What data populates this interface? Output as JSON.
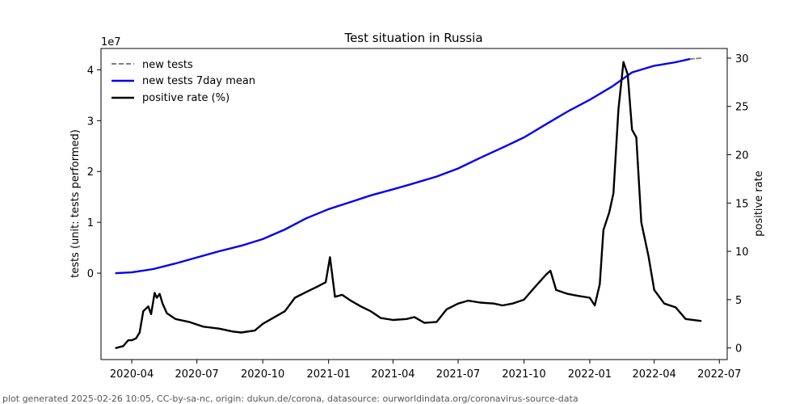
{
  "chart_data": {
    "type": "line",
    "title": "Test situation in Russia",
    "ylabel_left": "tests (unit: tests performed)",
    "ylabel_right": "positive rate",
    "left_multiplier": "1e7",
    "left_ylim": [
      -17000000,
      44200000
    ],
    "right_ylim": [
      -1.2,
      31.0
    ],
    "xlim": [
      "2020-02-18",
      "2022-07-12"
    ],
    "left_ticks": [
      {
        "value": 0,
        "label": "0"
      },
      {
        "value": 10000000,
        "label": "1"
      },
      {
        "value": 20000000,
        "label": "2"
      },
      {
        "value": 30000000,
        "label": "3"
      },
      {
        "value": 40000000,
        "label": "4"
      }
    ],
    "right_ticks": [
      {
        "value": 0,
        "label": "0"
      },
      {
        "value": 5,
        "label": "5"
      },
      {
        "value": 10,
        "label": "10"
      },
      {
        "value": 15,
        "label": "15"
      },
      {
        "value": 20,
        "label": "20"
      },
      {
        "value": 25,
        "label": "25"
      },
      {
        "value": 30,
        "label": "30"
      }
    ],
    "x_ticks": [
      {
        "date": "2020-04-01",
        "label": "2020-04"
      },
      {
        "date": "2020-07-01",
        "label": "2020-07"
      },
      {
        "date": "2020-10-01",
        "label": "2020-10"
      },
      {
        "date": "2021-01-01",
        "label": "2021-01"
      },
      {
        "date": "2021-04-01",
        "label": "2021-04"
      },
      {
        "date": "2021-07-01",
        "label": "2021-07"
      },
      {
        "date": "2021-10-01",
        "label": "2021-10"
      },
      {
        "date": "2022-01-01",
        "label": "2022-01"
      },
      {
        "date": "2022-04-01",
        "label": "2022-04"
      },
      {
        "date": "2022-07-01",
        "label": "2022-07"
      }
    ],
    "legend": {
      "placement": "top-left",
      "entries": [
        {
          "label": "new tests",
          "color": "#808080",
          "style": "dashed"
        },
        {
          "label": "new tests 7day mean",
          "color": "#0000ee",
          "style": "solid"
        },
        {
          "label": "positive rate (%)",
          "color": "#000000",
          "style": "solid"
        }
      ]
    },
    "series": [
      {
        "name": "new tests",
        "axis": "left",
        "color": "#808080",
        "style": "dashed",
        "points": [
          [
            "2022-05-20",
            42100000
          ],
          [
            "2022-06-05",
            42300000
          ]
        ]
      },
      {
        "name": "new tests 7day mean",
        "axis": "left",
        "color": "#0000ee",
        "style": "solid",
        "points": [
          [
            "2020-03-10",
            0
          ],
          [
            "2020-04-01",
            150000
          ],
          [
            "2020-05-01",
            800000
          ],
          [
            "2020-06-01",
            1900000
          ],
          [
            "2020-07-01",
            3100000
          ],
          [
            "2020-08-01",
            4300000
          ],
          [
            "2020-09-01",
            5400000
          ],
          [
            "2020-10-01",
            6700000
          ],
          [
            "2020-11-01",
            8600000
          ],
          [
            "2020-12-01",
            10800000
          ],
          [
            "2021-01-01",
            12600000
          ],
          [
            "2021-02-01",
            14000000
          ],
          [
            "2021-03-01",
            15300000
          ],
          [
            "2021-04-01",
            16500000
          ],
          [
            "2021-05-01",
            17700000
          ],
          [
            "2021-06-01",
            19000000
          ],
          [
            "2021-07-01",
            20600000
          ],
          [
            "2021-08-01",
            22700000
          ],
          [
            "2021-09-01",
            24700000
          ],
          [
            "2021-10-01",
            26700000
          ],
          [
            "2021-11-01",
            29300000
          ],
          [
            "2021-12-01",
            31800000
          ],
          [
            "2022-01-01",
            34100000
          ],
          [
            "2022-02-01",
            36700000
          ],
          [
            "2022-03-01",
            39500000
          ],
          [
            "2022-04-01",
            40800000
          ],
          [
            "2022-05-01",
            41500000
          ],
          [
            "2022-05-20",
            42100000
          ]
        ]
      },
      {
        "name": "positive rate (%)",
        "axis": "right",
        "color": "#000000",
        "style": "solid",
        "points": [
          [
            "2020-03-10",
            0
          ],
          [
            "2020-03-20",
            0.2
          ],
          [
            "2020-03-27",
            0.8
          ],
          [
            "2020-04-01",
            0.8
          ],
          [
            "2020-04-07",
            1.0
          ],
          [
            "2020-04-12",
            1.6
          ],
          [
            "2020-04-17",
            3.8
          ],
          [
            "2020-04-24",
            4.3
          ],
          [
            "2020-04-28",
            3.5
          ],
          [
            "2020-05-03",
            5.7
          ],
          [
            "2020-05-06",
            5.2
          ],
          [
            "2020-05-10",
            5.6
          ],
          [
            "2020-05-14",
            4.6
          ],
          [
            "2020-05-20",
            3.6
          ],
          [
            "2020-06-01",
            3.0
          ],
          [
            "2020-06-20",
            2.7
          ],
          [
            "2020-07-10",
            2.2
          ],
          [
            "2020-08-01",
            2.0
          ],
          [
            "2020-08-20",
            1.7
          ],
          [
            "2020-09-01",
            1.6
          ],
          [
            "2020-09-20",
            1.8
          ],
          [
            "2020-10-01",
            2.5
          ],
          [
            "2020-10-20",
            3.3
          ],
          [
            "2020-11-01",
            3.8
          ],
          [
            "2020-11-15",
            5.2
          ],
          [
            "2020-12-01",
            5.8
          ],
          [
            "2020-12-15",
            6.3
          ],
          [
            "2020-12-28",
            6.8
          ],
          [
            "2021-01-03",
            9.4
          ],
          [
            "2021-01-10",
            5.3
          ],
          [
            "2021-01-20",
            5.5
          ],
          [
            "2021-02-01",
            4.9
          ],
          [
            "2021-02-15",
            4.3
          ],
          [
            "2021-03-01",
            3.8
          ],
          [
            "2021-03-15",
            3.1
          ],
          [
            "2021-04-01",
            2.9
          ],
          [
            "2021-04-20",
            3.0
          ],
          [
            "2021-05-01",
            3.2
          ],
          [
            "2021-05-15",
            2.6
          ],
          [
            "2021-06-01",
            2.7
          ],
          [
            "2021-06-15",
            4.0
          ],
          [
            "2021-07-01",
            4.6
          ],
          [
            "2021-07-15",
            4.9
          ],
          [
            "2021-08-01",
            4.7
          ],
          [
            "2021-08-20",
            4.6
          ],
          [
            "2021-09-01",
            4.4
          ],
          [
            "2021-09-15",
            4.6
          ],
          [
            "2021-10-01",
            5.0
          ],
          [
            "2021-10-15",
            6.2
          ],
          [
            "2021-11-01",
            7.6
          ],
          [
            "2021-11-07",
            8.0
          ],
          [
            "2021-11-15",
            6.0
          ],
          [
            "2021-12-01",
            5.6
          ],
          [
            "2021-12-15",
            5.4
          ],
          [
            "2022-01-01",
            5.2
          ],
          [
            "2022-01-08",
            4.4
          ],
          [
            "2022-01-15",
            6.6
          ],
          [
            "2022-01-20",
            12.2
          ],
          [
            "2022-01-28",
            14.0
          ],
          [
            "2022-02-03",
            16.0
          ],
          [
            "2022-02-10",
            24.7
          ],
          [
            "2022-02-17",
            29.6
          ],
          [
            "2022-02-23",
            28.3
          ],
          [
            "2022-03-01",
            22.6
          ],
          [
            "2022-03-07",
            21.8
          ],
          [
            "2022-03-14",
            13.0
          ],
          [
            "2022-03-24",
            9.5
          ],
          [
            "2022-04-01",
            6.0
          ],
          [
            "2022-04-15",
            4.6
          ],
          [
            "2022-05-01",
            4.2
          ],
          [
            "2022-05-15",
            3.0
          ],
          [
            "2022-06-05",
            2.8
          ]
        ]
      }
    ]
  },
  "footer": {
    "text": "plot generated 2025-02-26 10:05, CC-by-sa-nc, origin: dukun.de/corona, datasource: ourworldindata.org/coronavirus-source-data"
  }
}
